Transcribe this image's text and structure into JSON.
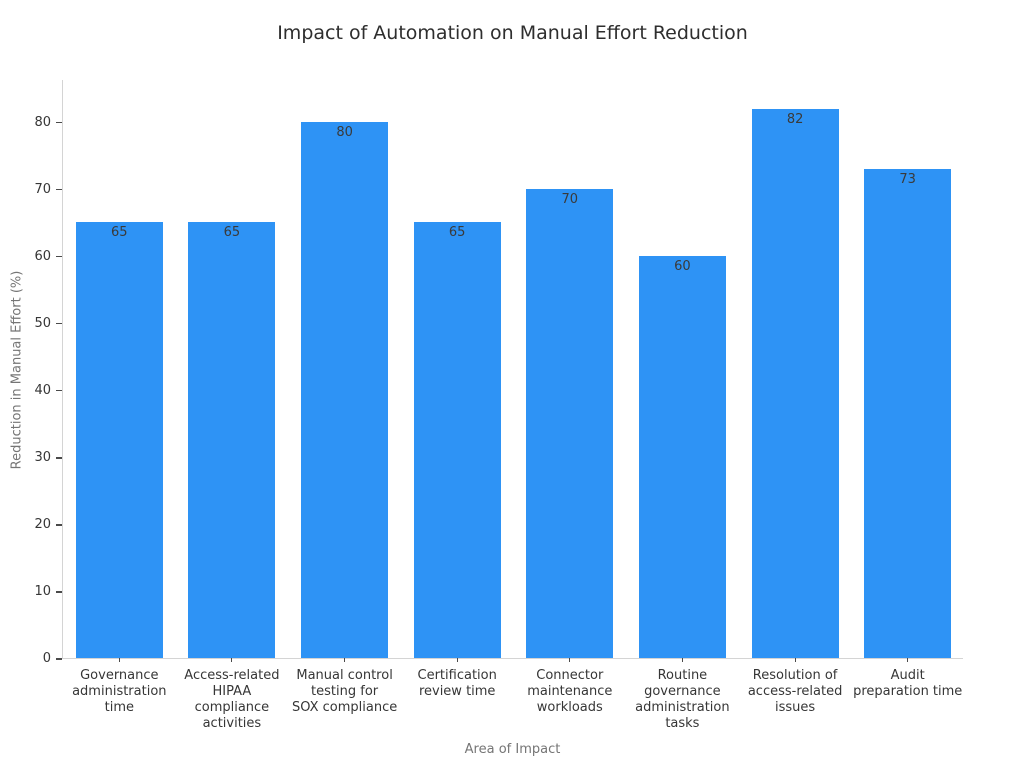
{
  "chart_data": {
    "type": "bar",
    "title": "Impact of Automation on Manual Effort Reduction",
    "xlabel": "Area of Impact",
    "ylabel": "Reduction in Manual Effort (%)",
    "categories": [
      "Governance administration time",
      "Access-related HIPAA compliance activities",
      "Manual control testing for SOX compliance",
      "Certification review time",
      "Connector maintenance workloads",
      "Routine governance administration tasks",
      "Resolution of access-related issues",
      "Audit preparation time"
    ],
    "category_tick_labels": [
      "Governance\nadministration\ntime",
      "Access-related\nHIPAA\ncompliance\nactivities",
      "Manual control\ntesting for\nSOX compliance",
      "Certification\nreview time",
      "Connector\nmaintenance\nworkloads",
      "Routine\ngovernance\nadministration\ntasks",
      "Resolution of\naccess-related\nissues",
      "Audit\npreparation time"
    ],
    "values": [
      65,
      65,
      80,
      65,
      70,
      60,
      82,
      73
    ],
    "bar_value_labels": [
      "65",
      "65",
      "80",
      "65",
      "70",
      "60",
      "82",
      "73"
    ],
    "yticks": [
      0,
      10,
      20,
      30,
      40,
      50,
      60,
      70,
      80
    ],
    "ylim": [
      0,
      86.4
    ],
    "grid": false,
    "legend": "none",
    "colors": {
      "bar": "#2e93f5",
      "value_label": "#3a3a3a",
      "tick_label": "#363636",
      "axis_title": "#757575",
      "title": "#2e2e2e",
      "spine": "#d4d4d4",
      "tick_mark": "#4a4a4a",
      "background": "#ffffff"
    }
  }
}
